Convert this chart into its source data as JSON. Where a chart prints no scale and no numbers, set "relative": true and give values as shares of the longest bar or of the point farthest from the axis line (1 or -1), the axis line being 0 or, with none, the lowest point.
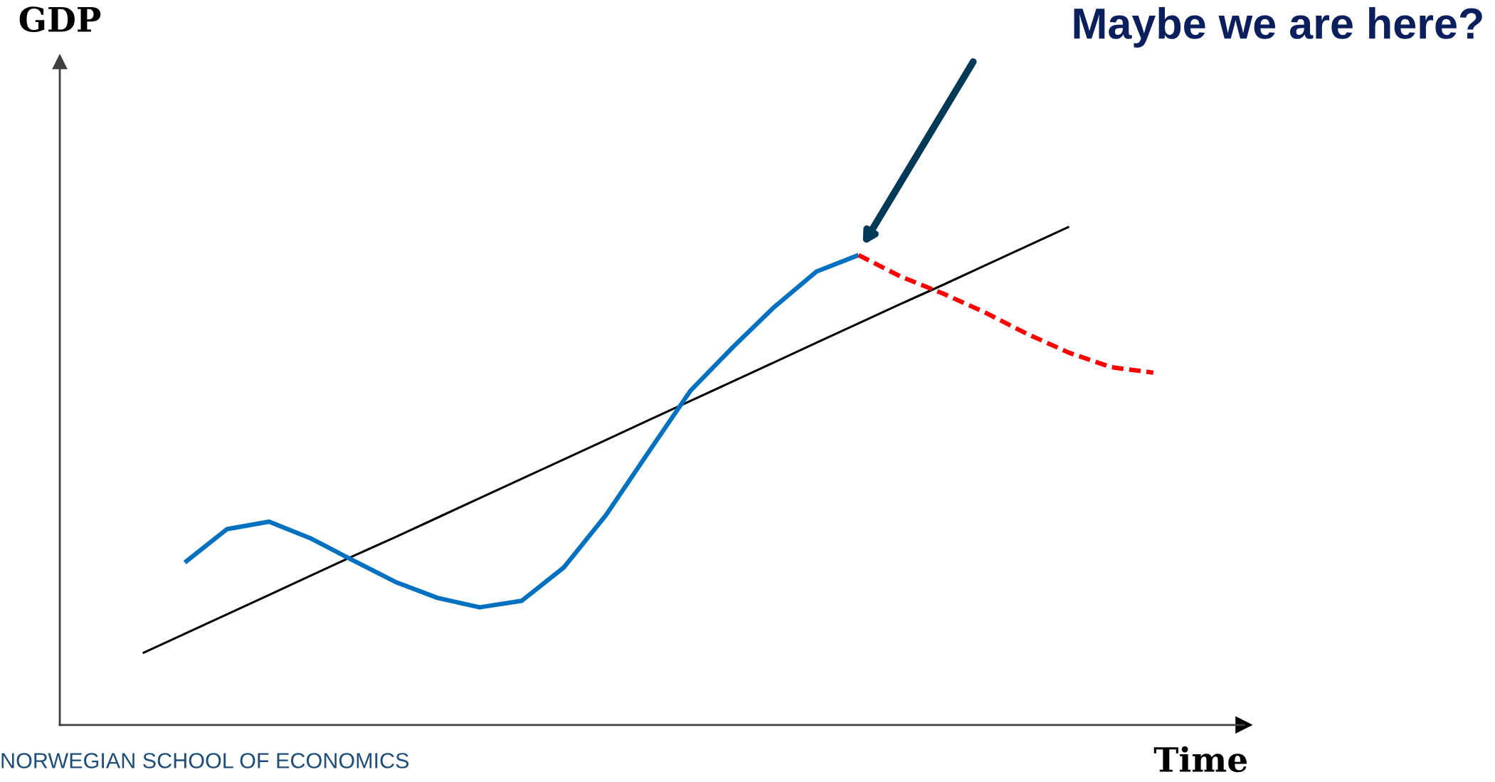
{
  "chart_data": {
    "type": "line",
    "relative": true,
    "xlabel": "Time",
    "legend": false,
    "marker": "none",
    "categories": [
      null,
      null,
      null,
      null,
      null,
      null,
      null,
      null,
      null,
      null,
      null,
      null,
      null,
      null,
      null,
      null,
      null,
      null,
      null,
      null,
      null,
      null,
      null,
      null,
      null
    ],
    "series": [
      {
        "color": "#000000",
        "line_style": "solid",
        "values": [
          0.144,
          0.183,
          0.222,
          0.261,
          0.3,
          0.339,
          0.377,
          0.416,
          0.455,
          0.494,
          0.533,
          0.572,
          0.611,
          0.65,
          0.689,
          0.728,
          0.767,
          0.806,
          0.845,
          0.883,
          0.922,
          0.961,
          1.0,
          null,
          null
        ]
      },
      {
        "color": "#0070c0",
        "line_style": "solid",
        "values": [
          null,
          0.326,
          0.393,
          0.408,
          0.374,
          0.33,
          0.287,
          0.255,
          0.236,
          0.249,
          0.316,
          0.421,
          0.546,
          0.67,
          0.757,
          0.839,
          0.91,
          0.943,
          null,
          null,
          null,
          null,
          null,
          null,
          null
        ]
      },
      {
        "color": "#ff0000",
        "line_style": "dashed",
        "values": [
          null,
          null,
          null,
          null,
          null,
          null,
          null,
          null,
          null,
          null,
          null,
          null,
          null,
          null,
          null,
          null,
          null,
          0.943,
          0.9,
          0.866,
          0.828,
          0.785,
          0.747,
          0.718,
          0.707
        ]
      }
    ],
    "annotations": [
      "Maybe we are here?",
      "NORWEGIAN SCHOOL OF ECONOMICS",
      "GDP"
    ]
  }
}
